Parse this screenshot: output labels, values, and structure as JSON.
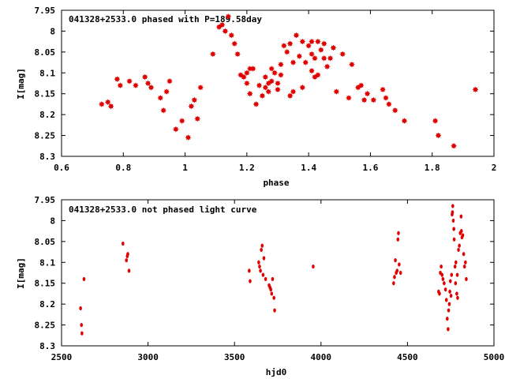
{
  "chart_data": [
    {
      "type": "scatter",
      "title": "041328+2533.0 phased with P=189.58day",
      "xlabel": "phase",
      "ylabel": "I[mag]",
      "xlim": [
        0.6,
        2.0
      ],
      "ylim": [
        7.95,
        8.3
      ],
      "y_inverted": true,
      "xticks": [
        "0.6",
        "0.8",
        "1",
        "1.2",
        "1.4",
        "1.6",
        "1.8",
        "2"
      ],
      "yticks": [
        "7.95",
        "8",
        "8.05",
        "8.1",
        "8.15",
        "8.2",
        "8.25",
        "8.3"
      ],
      "marker": "filled-star",
      "color": "#e00000",
      "grid": false,
      "points": [
        [
          0.73,
          8.175
        ],
        [
          0.75,
          8.17
        ],
        [
          0.76,
          8.18
        ],
        [
          0.78,
          8.115
        ],
        [
          0.79,
          8.13
        ],
        [
          0.82,
          8.12
        ],
        [
          0.84,
          8.13
        ],
        [
          0.87,
          8.11
        ],
        [
          0.88,
          8.125
        ],
        [
          0.89,
          8.135
        ],
        [
          0.92,
          8.16
        ],
        [
          0.93,
          8.19
        ],
        [
          0.94,
          8.145
        ],
        [
          0.95,
          8.12
        ],
        [
          0.97,
          8.235
        ],
        [
          0.99,
          8.215
        ],
        [
          1.01,
          8.255
        ],
        [
          1.02,
          8.18
        ],
        [
          1.03,
          8.165
        ],
        [
          1.04,
          8.21
        ],
        [
          1.05,
          8.135
        ],
        [
          1.09,
          8.055
        ],
        [
          1.11,
          7.99
        ],
        [
          1.12,
          7.985
        ],
        [
          1.13,
          8.0
        ],
        [
          1.14,
          7.965
        ],
        [
          1.15,
          8.01
        ],
        [
          1.16,
          8.03
        ],
        [
          1.17,
          8.055
        ],
        [
          1.18,
          8.105
        ],
        [
          1.19,
          8.11
        ],
        [
          1.2,
          8.1
        ],
        [
          1.2,
          8.125
        ],
        [
          1.21,
          8.15
        ],
        [
          1.21,
          8.09
        ],
        [
          1.22,
          8.09
        ],
        [
          1.23,
          8.175
        ],
        [
          1.24,
          8.13
        ],
        [
          1.25,
          8.155
        ],
        [
          1.26,
          8.11
        ],
        [
          1.26,
          8.135
        ],
        [
          1.27,
          8.145
        ],
        [
          1.27,
          8.125
        ],
        [
          1.28,
          8.09
        ],
        [
          1.28,
          8.12
        ],
        [
          1.29,
          8.1
        ],
        [
          1.3,
          8.14
        ],
        [
          1.3,
          8.125
        ],
        [
          1.31,
          8.08
        ],
        [
          1.31,
          8.105
        ],
        [
          1.32,
          8.035
        ],
        [
          1.33,
          8.05
        ],
        [
          1.34,
          8.03
        ],
        [
          1.34,
          8.155
        ],
        [
          1.35,
          8.145
        ],
        [
          1.35,
          8.075
        ],
        [
          1.36,
          8.01
        ],
        [
          1.37,
          8.06
        ],
        [
          1.38,
          8.025
        ],
        [
          1.38,
          8.135
        ],
        [
          1.39,
          8.075
        ],
        [
          1.4,
          8.035
        ],
        [
          1.41,
          8.055
        ],
        [
          1.41,
          8.095
        ],
        [
          1.41,
          8.025
        ],
        [
          1.42,
          8.065
        ],
        [
          1.42,
          8.11
        ],
        [
          1.43,
          8.025
        ],
        [
          1.43,
          8.105
        ],
        [
          1.44,
          8.045
        ],
        [
          1.45,
          8.03
        ],
        [
          1.45,
          8.065
        ],
        [
          1.46,
          8.085
        ],
        [
          1.47,
          8.065
        ],
        [
          1.48,
          8.04
        ],
        [
          1.49,
          8.145
        ],
        [
          1.51,
          8.055
        ],
        [
          1.53,
          8.16
        ],
        [
          1.54,
          8.08
        ],
        [
          1.56,
          8.135
        ],
        [
          1.57,
          8.13
        ],
        [
          1.58,
          8.165
        ],
        [
          1.59,
          8.15
        ],
        [
          1.61,
          8.165
        ],
        [
          1.64,
          8.14
        ],
        [
          1.65,
          8.16
        ],
        [
          1.66,
          8.175
        ],
        [
          1.68,
          8.19
        ],
        [
          1.71,
          8.215
        ],
        [
          1.81,
          8.215
        ],
        [
          1.82,
          8.25
        ],
        [
          1.87,
          8.275
        ],
        [
          1.94,
          8.14
        ]
      ]
    },
    {
      "type": "scatter",
      "title": "041328+2533.0 not phased light curve",
      "xlabel": "hjd0",
      "ylabel": "I[mag]",
      "xlim": [
        2500,
        5000
      ],
      "ylim": [
        7.95,
        8.3
      ],
      "y_inverted": true,
      "xticks": [
        "2500",
        "3000",
        "3500",
        "4000",
        "4500",
        "5000"
      ],
      "yticks": [
        "7.95",
        "8",
        "8.05",
        "8.1",
        "8.15",
        "8.2",
        "8.25",
        "8.3"
      ],
      "marker": "filled-dot",
      "color": "#e00000",
      "grid": false,
      "points": [
        [
          2610,
          8.21
        ],
        [
          2615,
          8.25
        ],
        [
          2618,
          8.27
        ],
        [
          2630,
          8.14
        ],
        [
          2855,
          8.055
        ],
        [
          2875,
          8.095
        ],
        [
          2880,
          8.085
        ],
        [
          2883,
          8.08
        ],
        [
          2890,
          8.12
        ],
        [
          3585,
          8.12
        ],
        [
          3590,
          8.145
        ],
        [
          3640,
          8.1
        ],
        [
          3645,
          8.11
        ],
        [
          3650,
          8.12
        ],
        [
          3655,
          8.07
        ],
        [
          3660,
          8.06
        ],
        [
          3665,
          8.13
        ],
        [
          3670,
          8.09
        ],
        [
          3680,
          8.14
        ],
        [
          3700,
          8.155
        ],
        [
          3705,
          8.16
        ],
        [
          3710,
          8.165
        ],
        [
          3715,
          8.175
        ],
        [
          3720,
          8.14
        ],
        [
          3728,
          8.185
        ],
        [
          3732,
          8.215
        ],
        [
          3955,
          8.11
        ],
        [
          4420,
          8.15
        ],
        [
          4425,
          8.135
        ],
        [
          4430,
          8.095
        ],
        [
          4435,
          8.125
        ],
        [
          4440,
          8.12
        ],
        [
          4445,
          8.045
        ],
        [
          4448,
          8.03
        ],
        [
          4452,
          8.105
        ],
        [
          4460,
          8.125
        ],
        [
          4680,
          8.17
        ],
        [
          4685,
          8.175
        ],
        [
          4690,
          8.125
        ],
        [
          4695,
          8.11
        ],
        [
          4700,
          8.13
        ],
        [
          4705,
          8.14
        ],
        [
          4712,
          8.15
        ],
        [
          4720,
          8.165
        ],
        [
          4725,
          8.19
        ],
        [
          4730,
          8.235
        ],
        [
          4735,
          8.26
        ],
        [
          4738,
          8.215
        ],
        [
          4742,
          8.2
        ],
        [
          4745,
          8.17
        ],
        [
          4748,
          8.145
        ],
        [
          4752,
          8.18
        ],
        [
          4755,
          8.13
        ],
        [
          4758,
          7.985
        ],
        [
          4760,
          7.98
        ],
        [
          4762,
          7.965
        ],
        [
          4765,
          8.0
        ],
        [
          4768,
          8.02
        ],
        [
          4770,
          8.045
        ],
        [
          4775,
          8.11
        ],
        [
          4778,
          8.15
        ],
        [
          4780,
          8.1
        ],
        [
          4785,
          8.175
        ],
        [
          4788,
          8.13
        ],
        [
          4790,
          8.185
        ],
        [
          4795,
          8.07
        ],
        [
          4800,
          8.06
        ],
        [
          4805,
          8.03
        ],
        [
          4810,
          7.99
        ],
        [
          4812,
          8.025
        ],
        [
          4815,
          8.04
        ],
        [
          4820,
          8.035
        ],
        [
          4825,
          8.08
        ],
        [
          4830,
          8.11
        ],
        [
          4835,
          8.1
        ],
        [
          4840,
          8.14
        ]
      ]
    }
  ]
}
